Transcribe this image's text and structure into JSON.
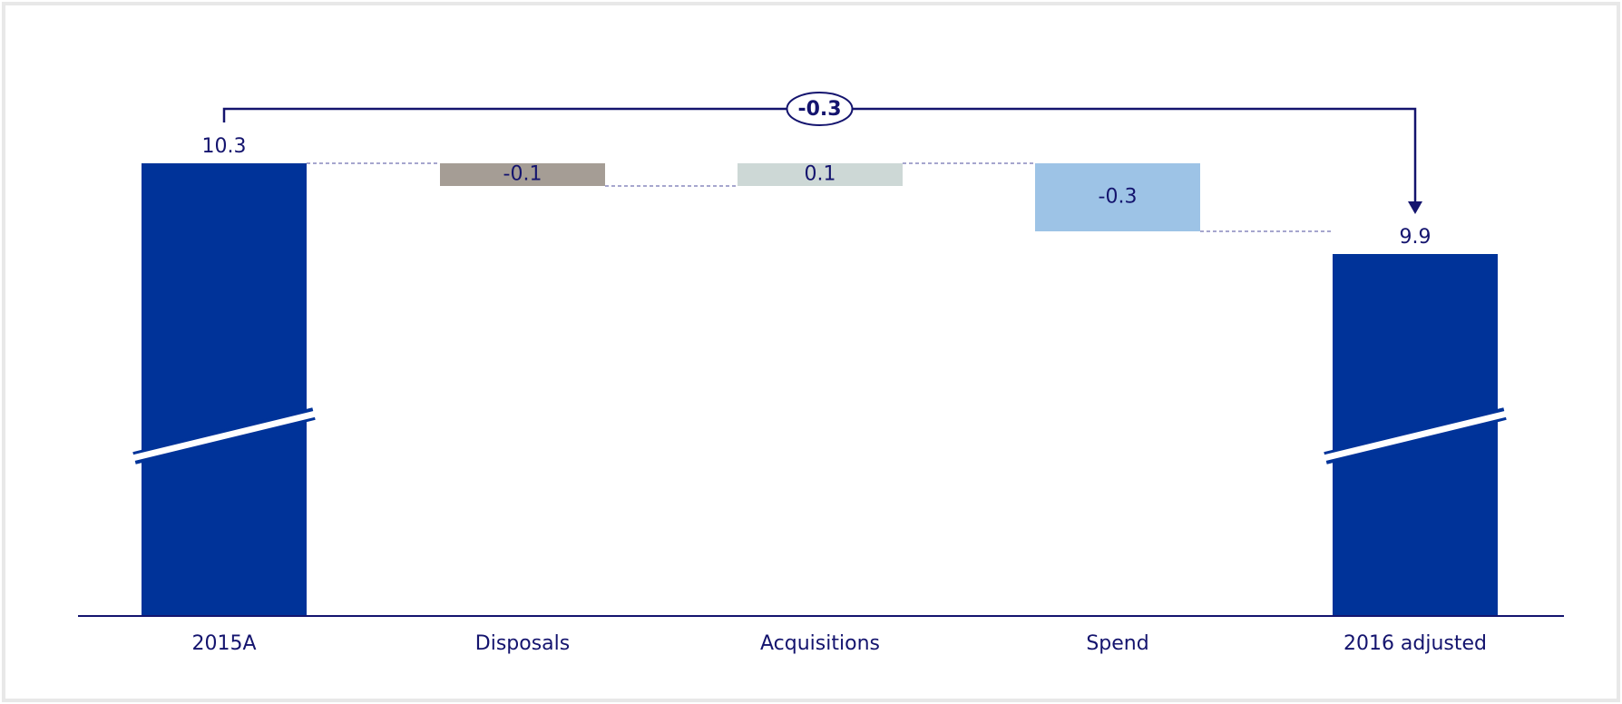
{
  "chart_data": {
    "type": "waterfall",
    "categories": [
      "2015A",
      "Disposals",
      "Acquisitions",
      "Spend",
      "2016 adjusted"
    ],
    "values": [
      10.3,
      -0.1,
      0.1,
      -0.3,
      9.9
    ],
    "measure": [
      "absolute",
      "relative",
      "relative",
      "relative",
      "absolute"
    ],
    "colors": [
      "#003399",
      "#a59d95",
      "#cdd8d6",
      "#9dc3e6",
      "#003399"
    ],
    "axis_break": true,
    "annotation": "-0.3"
  }
}
